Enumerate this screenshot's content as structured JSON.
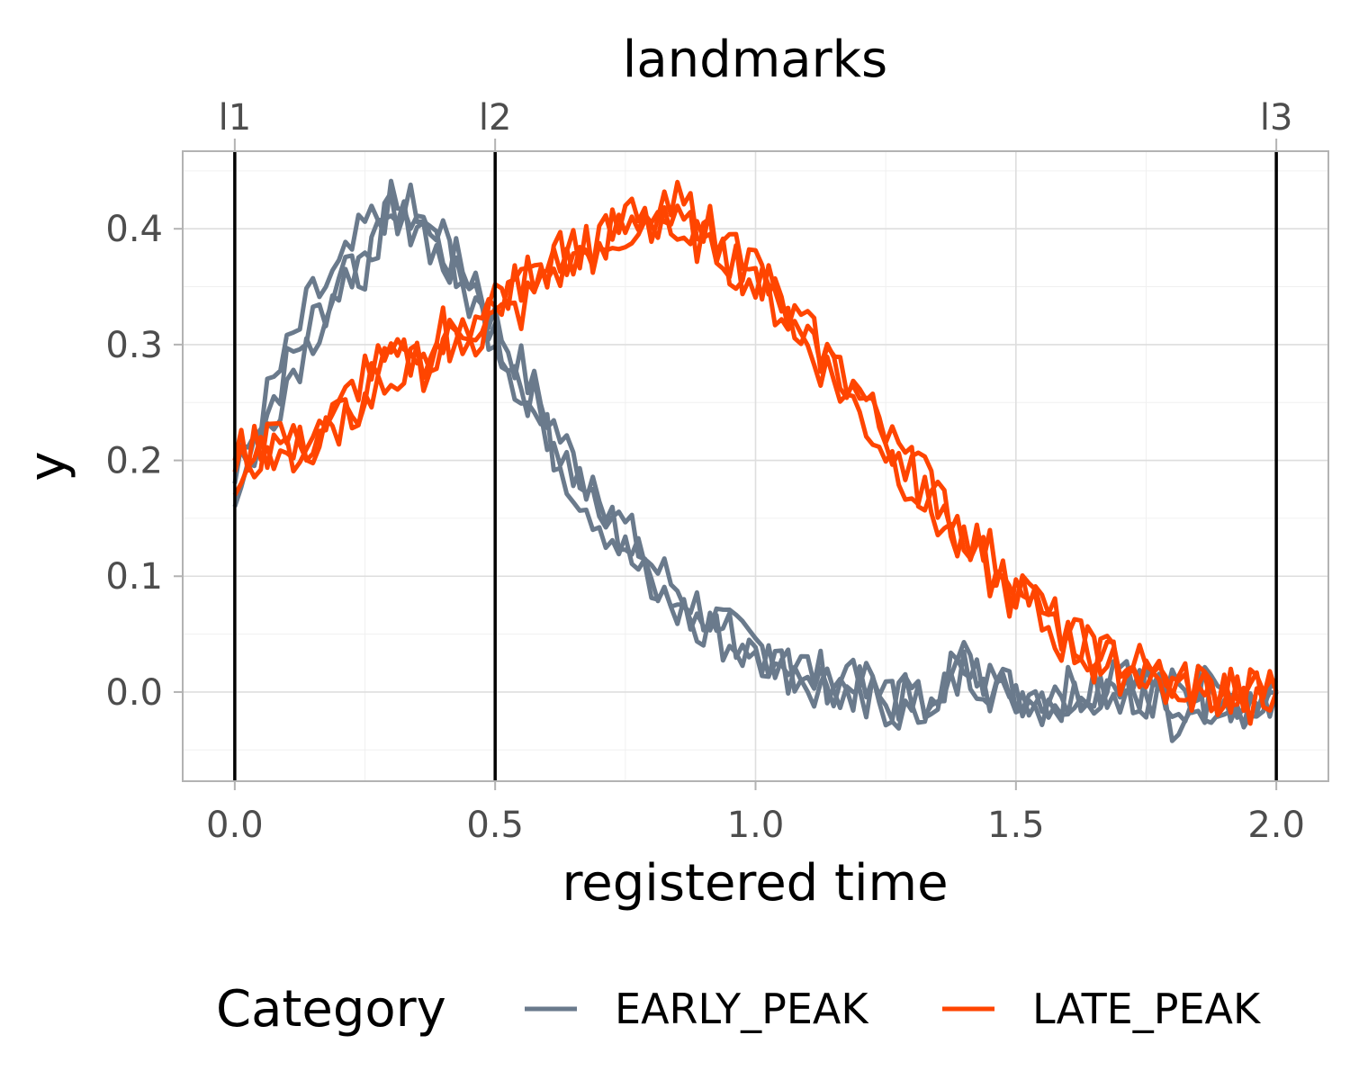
{
  "chart_data": {
    "type": "line",
    "title": "",
    "xlabel": "registered time",
    "ylabel": "y",
    "top_axis_title": "landmarks",
    "xlim": [
      -0.1,
      2.1
    ],
    "ylim": [
      -0.077,
      0.467
    ],
    "x_ticks": [
      0.0,
      0.5,
      1.0,
      1.5,
      2.0
    ],
    "x_tick_labels": [
      "0.0",
      "0.5",
      "1.0",
      "1.5",
      "2.0"
    ],
    "y_ticks": [
      0.0,
      0.1,
      0.2,
      0.3,
      0.4
    ],
    "y_tick_labels": [
      "0.0",
      "0.1",
      "0.2",
      "0.3",
      "0.4"
    ],
    "grid": true,
    "landmarks": [
      {
        "label": "l1",
        "x": 0.0
      },
      {
        "label": "l2",
        "x": 0.5
      },
      {
        "label": "l3",
        "x": 2.0
      }
    ],
    "legend": {
      "title": "Category",
      "position": "bottom"
    },
    "series": [
      {
        "name": "EARLY_PEAK",
        "color": "#6a7a8c",
        "x": [
          0.0,
          0.05,
          0.1,
          0.15,
          0.2,
          0.25,
          0.3,
          0.35,
          0.4,
          0.45,
          0.5,
          0.55,
          0.6,
          0.65,
          0.7,
          0.75,
          0.8,
          0.85,
          0.9,
          0.95,
          1.0,
          1.05,
          1.1,
          1.15,
          1.2,
          1.25,
          1.3,
          1.35,
          1.4,
          1.45,
          1.5,
          1.55,
          1.6,
          1.65,
          1.7,
          1.75,
          1.8,
          1.85,
          1.9,
          1.95,
          2.0
        ],
        "values": [
          0.16,
          0.23,
          0.28,
          0.32,
          0.35,
          0.38,
          0.41,
          0.42,
          0.38,
          0.36,
          0.32,
          0.28,
          0.24,
          0.2,
          0.17,
          0.14,
          0.11,
          0.09,
          0.07,
          0.05,
          0.04,
          0.03,
          0.02,
          0.01,
          0.0,
          -0.01,
          0.0,
          -0.02,
          0.02,
          0.01,
          0.0,
          0.0,
          -0.01,
          0.01,
          0.0,
          0.01,
          0.0,
          -0.01,
          0.0,
          -0.01,
          0.0
        ]
      },
      {
        "name": "EARLY_PEAK",
        "color": "#6a7a8c",
        "x": [
          0.0,
          0.05,
          0.1,
          0.15,
          0.2,
          0.25,
          0.3,
          0.35,
          0.4,
          0.45,
          0.5,
          0.55,
          0.6,
          0.65,
          0.7,
          0.75,
          0.8,
          0.85,
          0.9,
          0.95,
          1.0,
          1.05,
          1.1,
          1.15,
          1.2,
          1.25,
          1.3,
          1.35,
          1.4,
          1.45,
          1.5,
          1.55,
          1.6,
          1.65,
          1.7,
          1.75,
          1.8,
          1.85,
          1.9,
          1.95,
          2.0
        ],
        "values": [
          0.18,
          0.24,
          0.29,
          0.34,
          0.36,
          0.4,
          0.42,
          0.4,
          0.39,
          0.35,
          0.31,
          0.27,
          0.23,
          0.19,
          0.16,
          0.13,
          0.1,
          0.08,
          0.06,
          0.05,
          0.04,
          0.02,
          0.02,
          0.0,
          0.01,
          -0.01,
          -0.02,
          0.0,
          0.03,
          0.0,
          -0.01,
          0.0,
          -0.02,
          0.0,
          0.01,
          0.0,
          -0.01,
          0.0,
          0.0,
          -0.02,
          0.01
        ]
      },
      {
        "name": "EARLY_PEAK",
        "color": "#6a7a8c",
        "x": [
          0.0,
          0.05,
          0.1,
          0.15,
          0.2,
          0.25,
          0.3,
          0.35,
          0.4,
          0.45,
          0.5,
          0.55,
          0.6,
          0.65,
          0.7,
          0.75,
          0.8,
          0.85,
          0.9,
          0.95,
          1.0,
          1.05,
          1.1,
          1.15,
          1.2,
          1.25,
          1.3,
          1.35,
          1.4,
          1.45,
          1.5,
          1.55,
          1.6,
          1.65,
          1.7,
          1.75,
          1.8,
          1.85,
          1.9,
          1.95,
          2.0
        ],
        "values": [
          0.2,
          0.22,
          0.27,
          0.31,
          0.35,
          0.37,
          0.4,
          0.41,
          0.37,
          0.34,
          0.31,
          0.26,
          0.22,
          0.18,
          0.15,
          0.12,
          0.09,
          0.07,
          0.06,
          0.04,
          0.03,
          0.03,
          0.01,
          0.01,
          0.0,
          0.0,
          -0.01,
          -0.01,
          0.02,
          0.01,
          0.0,
          -0.01,
          0.0,
          0.0,
          0.0,
          0.0,
          -0.02,
          0.0,
          -0.01,
          0.0,
          0.0
        ]
      },
      {
        "name": "LATE_PEAK",
        "color": "#ff4500",
        "x": [
          0.0,
          0.05,
          0.1,
          0.15,
          0.2,
          0.25,
          0.3,
          0.35,
          0.4,
          0.45,
          0.5,
          0.55,
          0.6,
          0.65,
          0.7,
          0.75,
          0.8,
          0.85,
          0.9,
          0.95,
          1.0,
          1.05,
          1.1,
          1.15,
          1.2,
          1.25,
          1.3,
          1.35,
          1.4,
          1.45,
          1.5,
          1.55,
          1.6,
          1.65,
          1.7,
          1.75,
          1.8,
          1.85,
          1.9,
          1.95,
          2.0
        ],
        "values": [
          0.17,
          0.2,
          0.21,
          0.22,
          0.23,
          0.25,
          0.27,
          0.28,
          0.29,
          0.31,
          0.33,
          0.35,
          0.37,
          0.38,
          0.39,
          0.4,
          0.41,
          0.41,
          0.4,
          0.38,
          0.36,
          0.34,
          0.31,
          0.28,
          0.25,
          0.22,
          0.19,
          0.16,
          0.13,
          0.11,
          0.09,
          0.07,
          0.05,
          0.04,
          0.03,
          0.02,
          0.01,
          0.01,
          0.0,
          0.0,
          0.0
        ]
      },
      {
        "name": "LATE_PEAK",
        "color": "#ff4500",
        "x": [
          0.0,
          0.05,
          0.1,
          0.15,
          0.2,
          0.25,
          0.3,
          0.35,
          0.4,
          0.45,
          0.5,
          0.55,
          0.6,
          0.65,
          0.7,
          0.75,
          0.8,
          0.85,
          0.9,
          0.95,
          1.0,
          1.05,
          1.1,
          1.15,
          1.2,
          1.25,
          1.3,
          1.35,
          1.4,
          1.45,
          1.5,
          1.55,
          1.6,
          1.65,
          1.7,
          1.75,
          1.8,
          1.85,
          1.9,
          1.95,
          2.0
        ],
        "values": [
          0.2,
          0.22,
          0.2,
          0.22,
          0.24,
          0.28,
          0.28,
          0.29,
          0.3,
          0.32,
          0.32,
          0.33,
          0.36,
          0.37,
          0.39,
          0.4,
          0.42,
          0.4,
          0.39,
          0.38,
          0.35,
          0.33,
          0.3,
          0.27,
          0.24,
          0.21,
          0.18,
          0.15,
          0.12,
          0.1,
          0.08,
          0.06,
          0.04,
          0.03,
          0.02,
          0.02,
          0.01,
          0.0,
          0.01,
          -0.01,
          0.0
        ]
      },
      {
        "name": "LATE_PEAK",
        "color": "#ff4500",
        "x": [
          0.0,
          0.05,
          0.1,
          0.15,
          0.2,
          0.25,
          0.3,
          0.35,
          0.4,
          0.45,
          0.5,
          0.55,
          0.6,
          0.65,
          0.7,
          0.75,
          0.8,
          0.85,
          0.9,
          0.95,
          1.0,
          1.05,
          1.1,
          1.15,
          1.2,
          1.25,
          1.3,
          1.35,
          1.4,
          1.45,
          1.5,
          1.55,
          1.6,
          1.65,
          1.7,
          1.75,
          1.8,
          1.85,
          1.9,
          1.95,
          2.0
        ],
        "values": [
          0.19,
          0.21,
          0.22,
          0.21,
          0.23,
          0.26,
          0.29,
          0.27,
          0.31,
          0.3,
          0.34,
          0.35,
          0.38,
          0.39,
          0.38,
          0.41,
          0.4,
          0.42,
          0.41,
          0.37,
          0.37,
          0.33,
          0.31,
          0.28,
          0.26,
          0.22,
          0.2,
          0.17,
          0.14,
          0.12,
          0.1,
          0.07,
          0.05,
          0.03,
          0.03,
          0.01,
          0.0,
          0.01,
          -0.01,
          0.0,
          0.01
        ]
      }
    ]
  }
}
